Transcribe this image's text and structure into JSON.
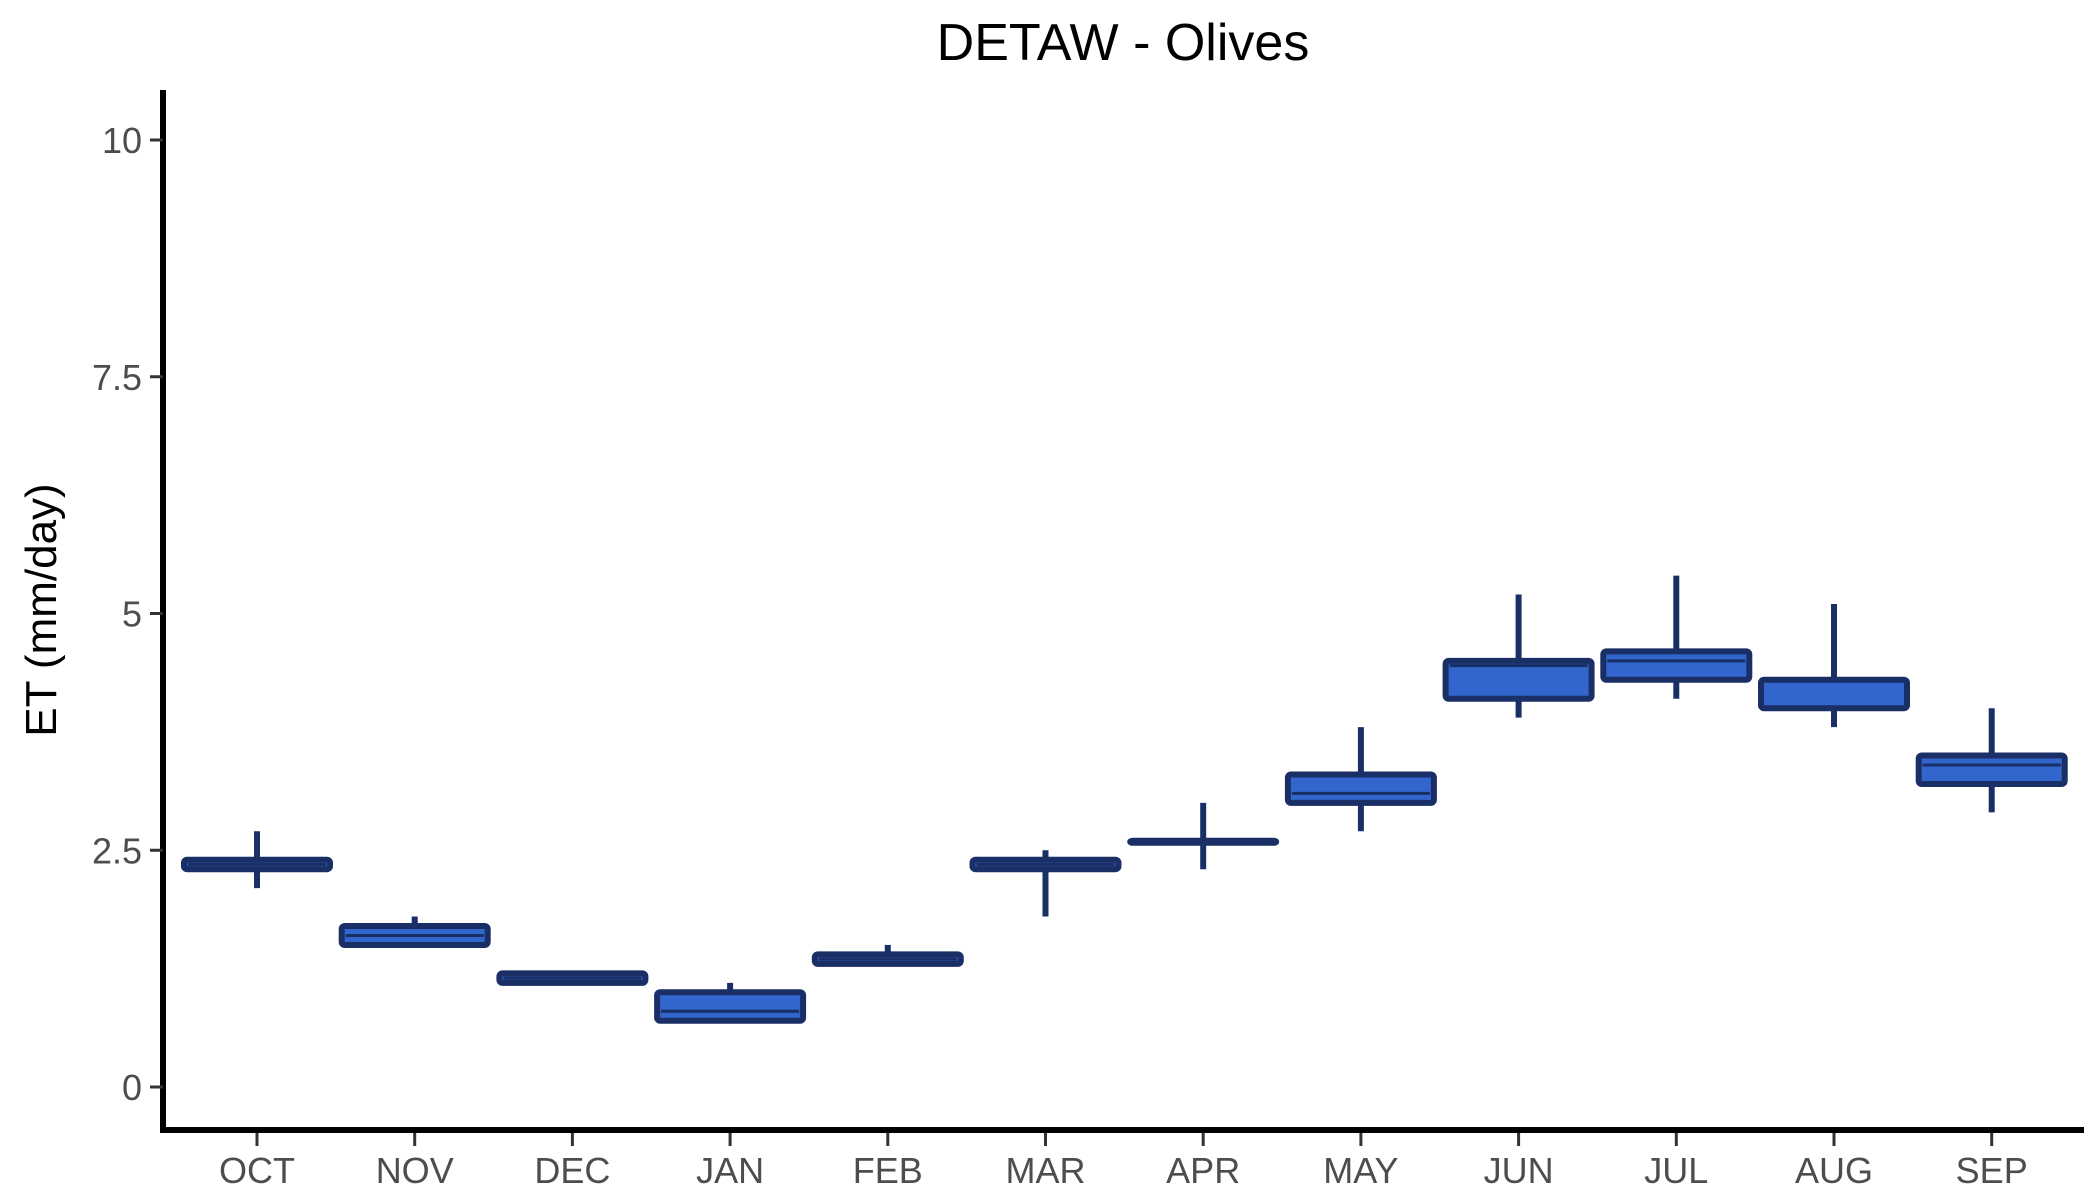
{
  "chart_data": {
    "type": "boxplot",
    "title": "DETAW - Olives",
    "xlabel": "",
    "ylabel": "ET (mm/day)",
    "ylim": [
      -0.5,
      10.5
    ],
    "yticks": [
      0,
      2.5,
      5,
      7.5,
      10
    ],
    "ytick_labels": [
      "0",
      "2.5",
      "5",
      "7.5",
      "10"
    ],
    "categories": [
      "OCT",
      "NOV",
      "DEC",
      "JAN",
      "FEB",
      "MAR",
      "APR",
      "MAY",
      "JUN",
      "JUL",
      "AUG",
      "SEP"
    ],
    "boxes": [
      {
        "min": 2.1,
        "q1": 2.3,
        "median": 2.35,
        "q3": 2.4,
        "max": 2.7
      },
      {
        "min": 1.5,
        "q1": 1.5,
        "median": 1.6,
        "q3": 1.7,
        "max": 1.8
      },
      {
        "min": 1.1,
        "q1": 1.1,
        "median": 1.15,
        "q3": 1.2,
        "max": 1.2
      },
      {
        "min": 0.7,
        "q1": 0.7,
        "median": 0.8,
        "q3": 1.0,
        "max": 1.1
      },
      {
        "min": 1.3,
        "q1": 1.3,
        "median": 1.35,
        "q3": 1.4,
        "max": 1.5
      },
      {
        "min": 1.8,
        "q1": 2.3,
        "median": 2.35,
        "q3": 2.4,
        "max": 2.5
      },
      {
        "min": 2.3,
        "q1": 2.6,
        "median": 2.6,
        "q3": 2.6,
        "max": 3.0
      },
      {
        "min": 2.7,
        "q1": 3.0,
        "median": 3.1,
        "q3": 3.3,
        "max": 3.8
      },
      {
        "min": 3.9,
        "q1": 4.1,
        "median": 4.45,
        "q3": 4.5,
        "max": 5.2
      },
      {
        "min": 4.1,
        "q1": 4.3,
        "median": 4.5,
        "q3": 4.6,
        "max": 5.4
      },
      {
        "min": 3.8,
        "q1": 4.0,
        "median": 4.3,
        "q3": 4.3,
        "max": 5.1
      },
      {
        "min": 2.9,
        "q1": 3.2,
        "median": 3.4,
        "q3": 3.5,
        "max": 4.0
      }
    ],
    "box_fill": "#3366cc",
    "box_stroke": "#1a2f66",
    "grid": false,
    "legend": "none"
  }
}
